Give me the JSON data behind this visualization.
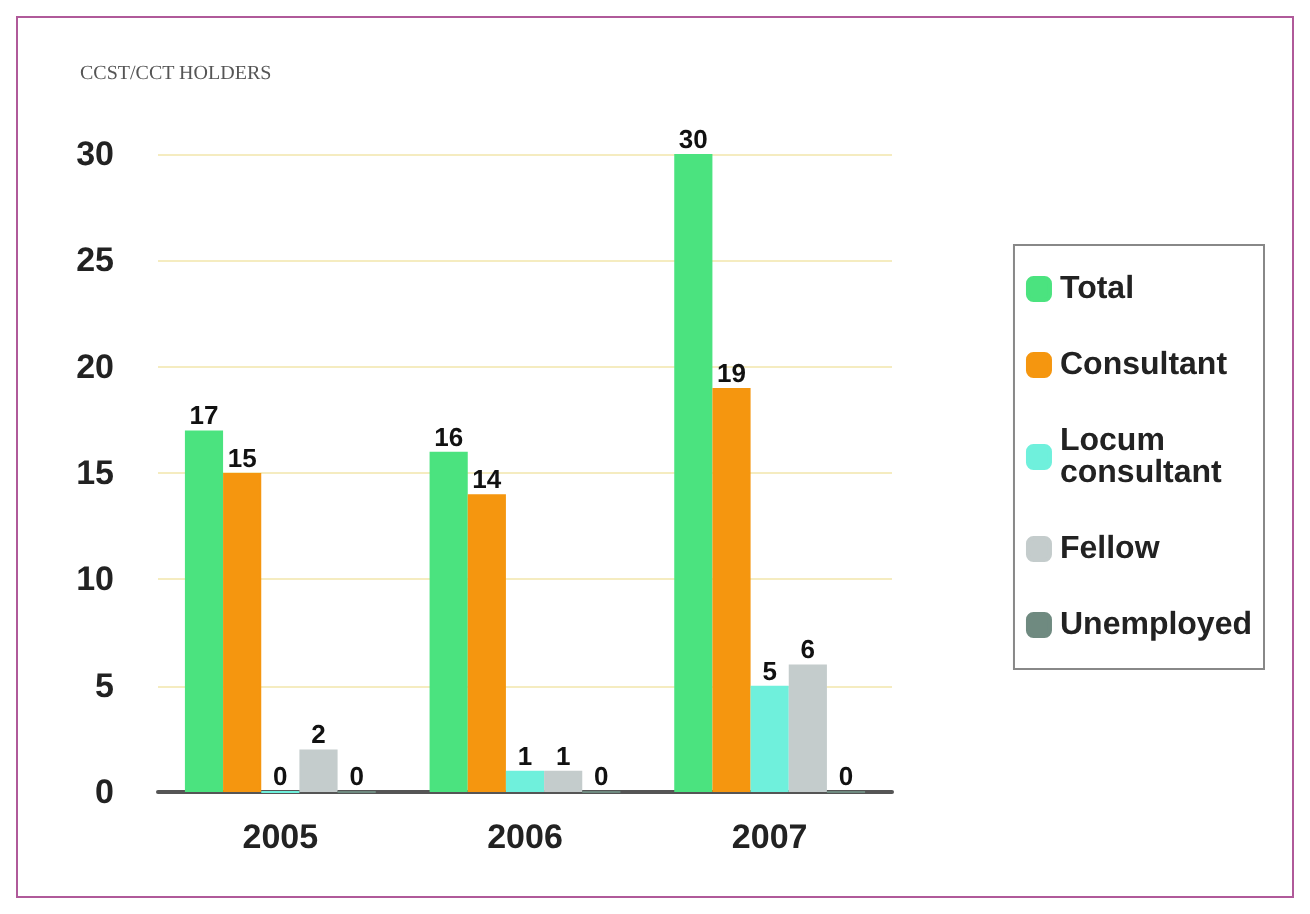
{
  "chart_data": {
    "type": "bar",
    "title": "CCST/CCT HOLDERS",
    "categories": [
      "2005",
      "2006",
      "2007"
    ],
    "series": [
      {
        "name": "Total",
        "color": "#4be37f",
        "values": [
          17,
          16,
          30
        ]
      },
      {
        "name": "Consultant",
        "color": "#f5960f",
        "values": [
          15,
          14,
          19
        ]
      },
      {
        "name": "Locum consultant",
        "color": "#6ff0dc",
        "values": [
          0,
          1,
          5
        ]
      },
      {
        "name": "Fellow",
        "color": "#c4cccc",
        "values": [
          2,
          1,
          6
        ]
      },
      {
        "name": "Unemployed",
        "color": "#6f8a80",
        "values": [
          0,
          0,
          0
        ]
      }
    ],
    "ylim": [
      0,
      30
    ],
    "yticks": [
      0,
      5,
      10,
      15,
      20,
      25,
      30
    ],
    "grid": "y",
    "legend": "right",
    "data_labels": true
  }
}
